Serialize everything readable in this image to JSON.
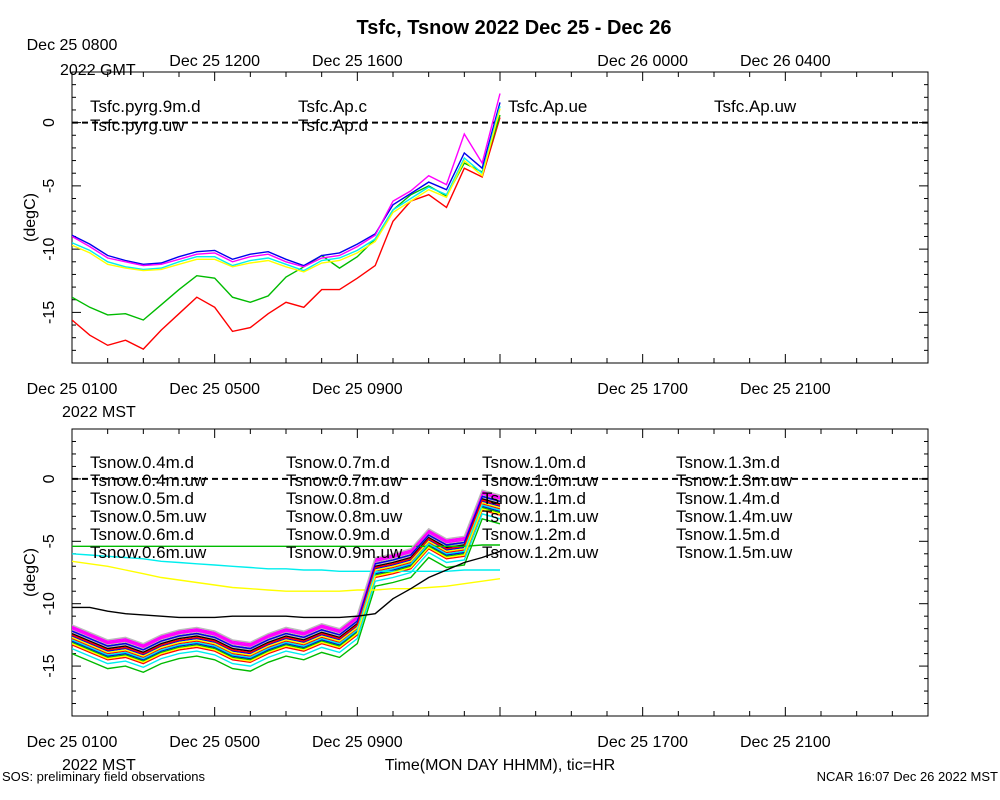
{
  "page": {
    "title": "Tsfc, Tsnow 2022 Dec 25 - Dec 26",
    "footer_left": "SOS: preliminary field observations",
    "footer_right": "NCAR 16:07 Dec 26 2022 MST"
  },
  "chart_data": [
    {
      "type": "line",
      "ylabel": "(degC)",
      "xlim": [
        0,
        24
      ],
      "ylim": [
        -19,
        4
      ],
      "yticks": [
        0,
        -5,
        -10,
        -15
      ],
      "top_tick_labels": [
        "Dec 25 0800",
        "Dec 25 1200",
        "Dec 25 1600",
        "Dec 26 0000",
        "Dec 26 0400"
      ],
      "top_tick_x": [
        0,
        4,
        8,
        16,
        20
      ],
      "top_axis_note": "2022 GMT",
      "bottom_tick_labels": [
        "Dec 25 0100",
        "Dec 25 0500",
        "Dec 25 0900",
        "Dec 25 1700",
        "Dec 25 2100"
      ],
      "bottom_tick_x": [
        0,
        4,
        8,
        16,
        20
      ],
      "bottom_axis_note": "2022 MST",
      "reference_line": 0,
      "x": [
        0,
        0.5,
        1,
        1.5,
        2,
        2.5,
        3,
        3.5,
        4,
        4.5,
        5,
        5.5,
        6,
        6.5,
        7,
        7.5,
        8,
        8.5,
        9,
        9.5,
        10,
        10.5,
        11,
        11.5,
        12
      ],
      "series": [
        {
          "name": "Tsfc.pyrg.9m.d",
          "color": "#ff0000",
          "values": [
            -15.6,
            -16.8,
            -17.6,
            -17.2,
            -17.9,
            -16.4,
            -15.1,
            -13.8,
            -14.6,
            -16.5,
            -16.2,
            -15.1,
            -14.2,
            -14.6,
            -13.2,
            -13.2,
            -12.3,
            -11.3,
            -7.8,
            -6.2,
            -5.7,
            -6.7,
            -3.6,
            -4.3,
            0.4
          ]
        },
        {
          "name": "Tsfc.pyrg.uw",
          "color": "#00bb00",
          "values": [
            -13.8,
            -14.6,
            -15.2,
            -15.1,
            -15.6,
            -14.4,
            -13.2,
            -12.1,
            -12.3,
            -13.8,
            -14.2,
            -13.7,
            -12.2,
            -11.4,
            -10.5,
            -11.5,
            -10.6,
            -9.2,
            -6.9,
            -5.7,
            -5.0,
            -5.8,
            -3.2,
            -3.9,
            0.6
          ]
        },
        {
          "name": "Tsfc.Ap.c",
          "color": "#0000ee",
          "values": [
            -8.9,
            -9.6,
            -10.5,
            -10.9,
            -11.2,
            -11.1,
            -10.6,
            -10.2,
            -10.1,
            -10.8,
            -10.4,
            -10.2,
            -10.8,
            -11.3,
            -10.5,
            -10.3,
            -9.6,
            -8.8,
            -6.5,
            -5.6,
            -4.7,
            -5.3,
            -2.4,
            -3.6,
            1.6
          ]
        },
        {
          "name": "Tsfc.Ap.d",
          "color": "#00eeee",
          "values": [
            -9.5,
            -10.1,
            -11.0,
            -11.4,
            -11.6,
            -11.5,
            -11.0,
            -10.6,
            -10.6,
            -11.3,
            -10.9,
            -10.7,
            -11.2,
            -11.7,
            -10.9,
            -10.7,
            -10.1,
            -9.2,
            -6.9,
            -6.0,
            -5.1,
            -5.7,
            -2.8,
            -4.0,
            1.3
          ]
        },
        {
          "name": "Tsfc.Ap.ue",
          "color": "#ff00ff",
          "values": [
            -9.0,
            -9.8,
            -10.7,
            -11.0,
            -11.3,
            -11.2,
            -10.8,
            -10.4,
            -10.3,
            -11.0,
            -10.6,
            -10.4,
            -11.0,
            -11.4,
            -10.7,
            -10.5,
            -9.8,
            -8.9,
            -6.2,
            -5.4,
            -4.2,
            -4.9,
            -0.9,
            -3.2,
            2.3
          ]
        },
        {
          "name": "Tsfc.Ap.uw",
          "color": "#ffff00",
          "values": [
            -9.7,
            -10.3,
            -11.2,
            -11.5,
            -11.7,
            -11.6,
            -11.2,
            -10.8,
            -10.8,
            -11.4,
            -11.1,
            -10.9,
            -11.4,
            -11.8,
            -11.1,
            -10.9,
            -10.3,
            -9.4,
            -7.1,
            -6.2,
            -5.3,
            -5.9,
            -3.0,
            -4.2,
            1.1
          ]
        }
      ]
    },
    {
      "type": "line",
      "xlabel": "Time(MON DAY HHMM), tic=HR",
      "ylabel": "(degC)",
      "xlim": [
        0,
        24
      ],
      "ylim": [
        -19,
        4
      ],
      "yticks": [
        0,
        -5,
        -10,
        -15
      ],
      "bottom_tick_labels": [
        "Dec 25 0100",
        "Dec 25 0500",
        "Dec 25 0900",
        "Dec 25 1700",
        "Dec 25 2100"
      ],
      "bottom_tick_x": [
        0,
        4,
        8,
        16,
        20
      ],
      "bottom_axis_note": "2022 MST",
      "reference_line": 0,
      "x": [
        0,
        0.5,
        1,
        1.5,
        2,
        2.5,
        3,
        3.5,
        4,
        4.5,
        5,
        5.5,
        6,
        6.5,
        7,
        7.5,
        8,
        8.5,
        9,
        9.5,
        10,
        10.5,
        11,
        11.5,
        12
      ],
      "near_surface_base": [
        -12.4,
        -13.0,
        -13.6,
        -13.4,
        -13.9,
        -13.2,
        -12.8,
        -12.6,
        -12.9,
        -13.6,
        -13.8,
        -13.1,
        -12.6,
        -12.9,
        -12.3,
        -12.7,
        -11.6,
        -7.0,
        -6.7,
        -6.3,
        -4.7,
        -5.5,
        -5.3,
        -1.6,
        -2.0
      ],
      "series": [
        {
          "name": "Tsnow.0.4m.d",
          "color": "#ff0000",
          "offset": -0.9
        },
        {
          "name": "Tsnow.0.4m.uw",
          "color": "#00bb00",
          "offset": -1.6
        },
        {
          "name": "Tsnow.0.5m.d",
          "color": "#0000ee",
          "offset": -0.6
        },
        {
          "name": "Tsnow.0.5m.uw",
          "color": "#00eeee",
          "offset": -1.2
        },
        {
          "name": "Tsnow.0.6m.d",
          "color": "#ff00ff",
          "offset": 0.6
        },
        {
          "name": "Tsnow.0.6m.uw",
          "color": "#ffff00",
          "values": [
            -6.6,
            -6.8,
            -7.0,
            -7.3,
            -7.6,
            -7.9,
            -8.1,
            -8.3,
            -8.5,
            -8.7,
            -8.8,
            -8.9,
            -9.0,
            -9.0,
            -9.0,
            -9.0,
            -8.9,
            -8.9,
            -8.8,
            -8.8,
            -8.7,
            -8.6,
            -8.4,
            -8.2,
            -8.0
          ]
        },
        {
          "name": "Tsnow.0.7m.d",
          "color": "#bbbbbb",
          "offset": 0.3
        },
        {
          "name": "Tsnow.0.7m.uw",
          "color": "#000000",
          "offset": 0.2
        },
        {
          "name": "Tsnow.0.8m.d",
          "color": "#ff0000",
          "offset": -0.4
        },
        {
          "name": "Tsnow.0.8m.uw",
          "color": "#00bb00",
          "offset": -0.7
        },
        {
          "name": "Tsnow.0.9m.d",
          "color": "#0000ee",
          "offset": -0.2
        },
        {
          "name": "Tsnow.0.9m.uw",
          "color": "#00eeee",
          "values": [
            -6.0,
            -6.1,
            -6.2,
            -6.3,
            -6.4,
            -6.6,
            -6.7,
            -6.8,
            -6.9,
            -7.0,
            -7.1,
            -7.2,
            -7.2,
            -7.3,
            -7.3,
            -7.4,
            -7.4,
            -7.4,
            -7.4,
            -7.4,
            -7.4,
            -7.4,
            -7.3,
            -7.3,
            -7.3
          ]
        },
        {
          "name": "Tsnow.1.0m.d",
          "color": "#ff00ff",
          "offset": 0.4
        },
        {
          "name": "Tsnow.1.0m.uw",
          "color": "#ffff00",
          "offset": -0.3
        },
        {
          "name": "Tsnow.1.1m.d",
          "color": "#bbbbbb",
          "offset": 0.1
        },
        {
          "name": "Tsnow.1.1m.uw",
          "color": "#000000",
          "offset": 0.0
        },
        {
          "name": "Tsnow.1.2m.d",
          "color": "#ff0000",
          "offset": -0.1
        },
        {
          "name": "Tsnow.1.2m.uw",
          "color": "#00bb00",
          "values": [
            -5.4,
            -5.4,
            -5.4,
            -5.4,
            -5.4,
            -5.4,
            -5.4,
            -5.4,
            -5.4,
            -5.4,
            -5.4,
            -5.4,
            -5.4,
            -5.4,
            -5.4,
            -5.4,
            -5.4,
            -5.4,
            -5.4,
            -5.4,
            -5.4,
            -5.4,
            -5.4,
            -5.3,
            -5.3
          ]
        },
        {
          "name": "Tsnow.1.3m.d",
          "color": "#0000ee",
          "offset": 0.2
        },
        {
          "name": "Tsnow.1.3m.uw",
          "color": "#00eeee",
          "offset": -0.5
        },
        {
          "name": "Tsnow.1.4m.d",
          "color": "#ff00ff",
          "offset": 0.5
        },
        {
          "name": "Tsnow.1.4m.uw",
          "color": "#ffff00",
          "offset": -0.8
        },
        {
          "name": "Tsnow.1.5m.d",
          "color": "#bbbbbb",
          "offset": 0.7
        },
        {
          "name": "Tsnow.1.5m.uw",
          "color": "#000000",
          "values": [
            -10.3,
            -10.3,
            -10.6,
            -10.8,
            -10.9,
            -11.0,
            -11.1,
            -11.1,
            -11.1,
            -11.0,
            -11.0,
            -11.0,
            -11.0,
            -11.1,
            -11.1,
            -11.1,
            -11.0,
            -10.8,
            -9.6,
            -8.8,
            -7.9,
            -7.3,
            -6.7,
            -6.3,
            -5.8
          ]
        }
      ]
    }
  ]
}
